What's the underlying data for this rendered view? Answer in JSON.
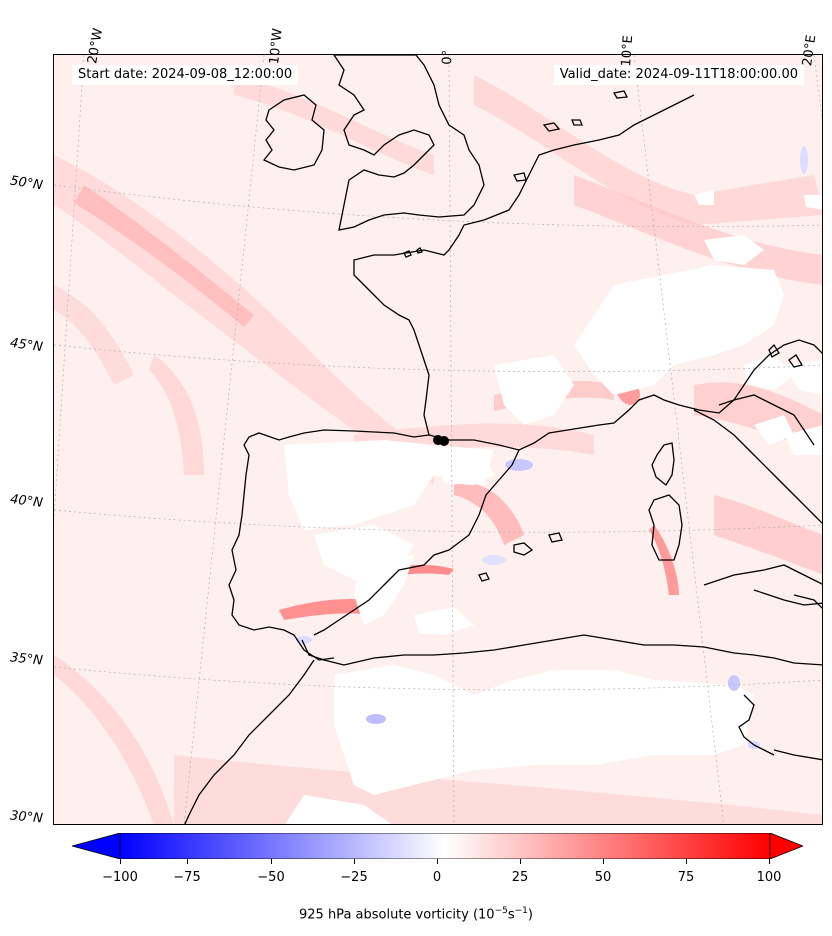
{
  "header": {
    "start_date": "Start date: 2024-09-08_12:00:00",
    "valid_date": "Valid_date: 2024-09-11T18:00:00.00"
  },
  "lon_labels": [
    "20°W",
    "10°W",
    "0°",
    "10°E",
    "20°E"
  ],
  "lat_labels": [
    "50°N",
    "45°N",
    "40°N",
    "35°N",
    "30°N"
  ],
  "colorbar": {
    "min": -100,
    "max": 100,
    "ticks": [
      "−100",
      "−75",
      "−50",
      "−25",
      "0",
      "25",
      "50",
      "75",
      "100"
    ],
    "label": "925 hPa absolute vorticity (10",
    "label_exp1": "−5",
    "label_mid": "s",
    "label_exp2": "−1",
    "label_end": ")",
    "colormap": "bwr",
    "extend": "both"
  },
  "colors": {
    "negative": "#0000ff",
    "positive": "#ff0000",
    "neutral": "#ffffff",
    "coastline": "#000000"
  },
  "marker": {
    "type": "storm-center-dot"
  }
}
